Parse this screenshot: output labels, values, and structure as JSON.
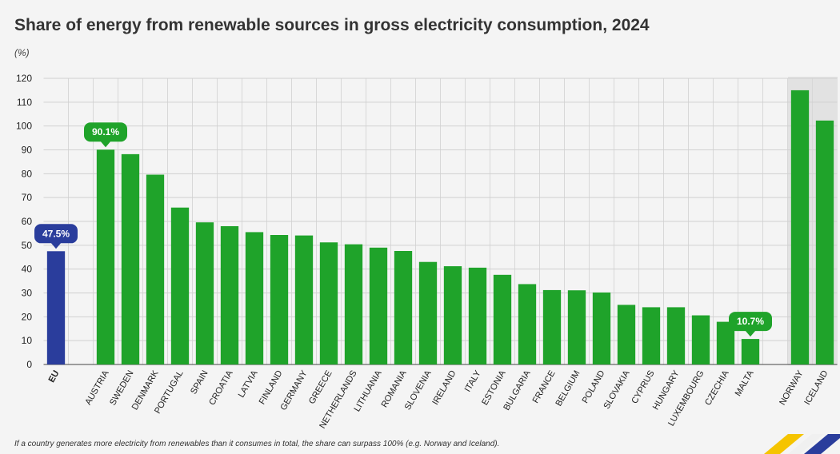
{
  "chart_data": {
    "type": "bar",
    "title": "Share of energy from renewable sources in gross electricity consumption, 2024",
    "subtitle": "(%)",
    "footnote": "If a country generates more electricity from renewables than it consumes in total, the share can surpass 100% (e.g. Norway and Iceland).",
    "categories": [
      "EU",
      null,
      "AUSTRIA",
      "SWEDEN",
      "DENMARK",
      "PORTUGAL",
      "SPAIN",
      "CROATIA",
      "LATVIA",
      "FINLAND",
      "GERMANY",
      "GREECE",
      "NETHERLANDS",
      "LITHUANIA",
      "ROMANIA",
      "SLOVENIA",
      "IRELAND",
      "ITALY",
      "ESTONIA",
      "BULGARIA",
      "FRANCE",
      "BELGIUM",
      "POLAND",
      "SLOVAKIA",
      "CYPRUS",
      "HUNGARY",
      "LUXEMBOURG",
      "CZECHIA",
      "MALTA",
      null,
      "NORWAY",
      "ICELAND"
    ],
    "values": [
      47.5,
      null,
      90.1,
      88.2,
      79.6,
      65.8,
      59.6,
      58.0,
      55.5,
      54.3,
      54.1,
      51.2,
      50.4,
      49.0,
      47.6,
      43.0,
      41.2,
      40.6,
      37.6,
      33.7,
      31.2,
      31.1,
      30.2,
      25.0,
      24.0,
      24.0,
      20.6,
      17.9,
      10.7,
      null,
      115.0,
      102.3
    ],
    "value_labels": [
      "47.5%",
      null,
      "90.1%",
      null,
      null,
      null,
      null,
      null,
      null,
      null,
      null,
      null,
      null,
      null,
      null,
      null,
      null,
      null,
      null,
      null,
      null,
      null,
      null,
      null,
      null,
      null,
      null,
      null,
      "10.7%",
      null,
      null,
      null
    ],
    "colors": [
      "#2a3d9c",
      null,
      "#1fa32a",
      "#1fa32a",
      "#1fa32a",
      "#1fa32a",
      "#1fa32a",
      "#1fa32a",
      "#1fa32a",
      "#1fa32a",
      "#1fa32a",
      "#1fa32a",
      "#1fa32a",
      "#1fa32a",
      "#1fa32a",
      "#1fa32a",
      "#1fa32a",
      "#1fa32a",
      "#1fa32a",
      "#1fa32a",
      "#1fa32a",
      "#1fa32a",
      "#1fa32a",
      "#1fa32a",
      "#1fa32a",
      "#1fa32a",
      "#1fa32a",
      "#1fa32a",
      "#1fa32a",
      null,
      "#1fa32a",
      "#1fa32a"
    ],
    "ylim": [
      0,
      120
    ],
    "yticks": [
      0,
      10,
      20,
      30,
      40,
      50,
      60,
      70,
      80,
      90,
      100,
      110,
      120
    ],
    "grid": true
  }
}
